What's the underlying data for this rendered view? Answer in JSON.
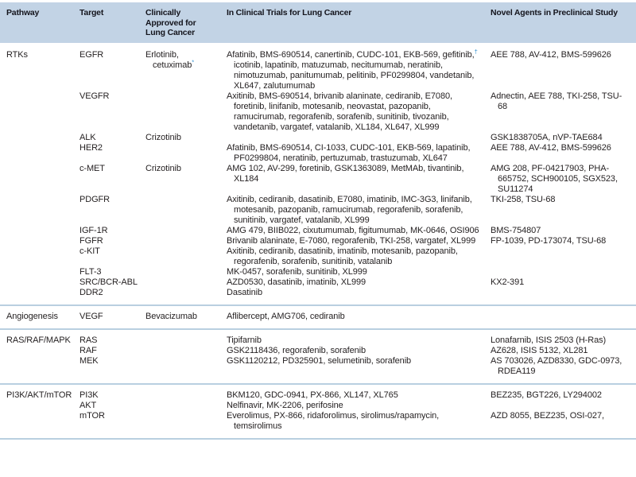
{
  "table": {
    "header": {
      "bg_color": "#c2d3e5",
      "columns": [
        "Pathway",
        "Target",
        "Clinically Approved for Lung Cancer",
        "In Clinical Trials for Lung Cancer",
        "Novel Agents in Preclinical Study"
      ]
    },
    "accent_color": "#2e8fd0",
    "separator_color": "#b9cfe0",
    "text_color": "#231f20",
    "footnote_symbols": [
      "*",
      "†"
    ],
    "sections": [
      {
        "pathway": "RTKs",
        "rows": [
          {
            "target": "EGFR",
            "approved": "Erlotinib, cetuximab[*]",
            "trials": "Afatinib, BMS-690514, canertinib, CUDC-101, EKB-569, gefitinib,[†] icotinib, lapatinib, matuzumab, necitumumab, neratinib, nimotuzumab, panitumumab, pelitinib, PF0299804, vandetanib, XL647, zalutumumab",
            "novel": "AEE 788, AV-412, BMS-599626"
          },
          {
            "target": "VEGFR",
            "approved": "",
            "trials": "Axitinib, BMS-690514, brivanib alaninate, cediranib, E7080, foretinib, linifanib, motesanib, neovastat, pazopanib, ramucirumab, regorafenib, sorafenib, sunitinib, tivozanib, vandetanib, vargatef, vatalanib, XL184, XL647, XL999",
            "novel": "Adnectin, AEE 788, TKI-258, TSU-68"
          },
          {
            "target": "ALK",
            "approved": "Crizotinib",
            "trials": "",
            "novel": "GSK1838705A, nVP-TAE684"
          },
          {
            "target": "HER2",
            "approved": "",
            "trials": "Afatinib, BMS-690514, CI-1033, CUDC-101, EKB-569, lapatinib, PF0299804, neratinib, pertuzumab, trastuzumab, XL647",
            "novel": "AEE 788, AV-412, BMS-599626"
          },
          {
            "target": "c-MET",
            "approved": "Crizotinib",
            "trials": "AMG 102, AV-299, foretinib, GSK1363089, MetMAb, tivantinib, XL184",
            "novel": "AMG 208, PF-04217903, PHA-665752, SCH900105, SGX523, SU11274"
          },
          {
            "target": "PDGFR",
            "approved": "",
            "trials": "Axitinib, cediranib, dasatinib, E7080, imatinib, IMC-3G3, linifanib, motesanib, pazopanib, ramucirumab, regorafenib, sorafenib, sunitinib, vargatef, vatalanib, XL999",
            "novel": "TKI-258, TSU-68"
          },
          {
            "target": "IGF-1R",
            "approved": "",
            "trials": "AMG 479, BIIB022, cixutumumab, figitumumab, MK-0646, OSI906",
            "novel": "BMS-754807"
          },
          {
            "target": "FGFR",
            "approved": "",
            "trials": "Brivanib alaninate, E-7080, regorafenib, TKI-258, vargatef, XL999",
            "novel": "FP-1039, PD-173074, TSU-68"
          },
          {
            "target": "c-KIT",
            "approved": "",
            "trials": "Axitinib, cediranib, dasatinib, imatinib, motesanib, pazopanib, regorafenib, sorafenib, sunitinib, vatalanib",
            "novel": ""
          },
          {
            "target": "FLT-3",
            "approved": "",
            "trials": "MK-0457, sorafenib, sunitinib, XL999",
            "novel": ""
          },
          {
            "target": "SRC/BCR-ABL",
            "approved": "",
            "trials": "AZD0530, dasatinib, imatinib, XL999",
            "novel": "KX2-391"
          },
          {
            "target": "DDR2",
            "approved": "",
            "trials": "Dasatinib",
            "novel": ""
          }
        ]
      },
      {
        "pathway": "Angiogenesis",
        "rows": [
          {
            "target": "VEGF",
            "approved": "Bevacizumab",
            "trials": "Aflibercept, AMG706, cediranib",
            "novel": ""
          }
        ]
      },
      {
        "pathway": "RAS/RAF/MAPK",
        "rows": [
          {
            "target": "RAS",
            "approved": "",
            "trials": "Tipifarnib",
            "novel": "Lonafarnib, ISIS 2503 (H-Ras)"
          },
          {
            "target": "RAF",
            "approved": "",
            "trials": "GSK2118436, regorafenib, sorafenib",
            "novel": "AZ628, ISIS 5132, XL281"
          },
          {
            "target": "MEK",
            "approved": "",
            "trials": "GSK1120212, PD325901, selumetinib, sorafenib",
            "novel": "AS 703026, AZD8330, GDC-0973, RDEA119"
          }
        ]
      },
      {
        "pathway": "PI3K/AKT/mTOR",
        "rows": [
          {
            "target": "PI3K",
            "approved": "",
            "trials": "BKM120, GDC-0941, PX-866, XL147, XL765",
            "novel": "BEZ235, BGT226, LY294002"
          },
          {
            "target": "AKT",
            "approved": "",
            "trials": "Nelfinavir, MK-2206, perifosine",
            "novel": ""
          },
          {
            "target": "mTOR",
            "approved": "",
            "trials": "Everolimus, PX-866, ridaforolimus, sirolimus/rapamycin, temsirolimus",
            "novel": "AZD 8055, BEZ235, OSI-027,"
          }
        ]
      }
    ]
  }
}
